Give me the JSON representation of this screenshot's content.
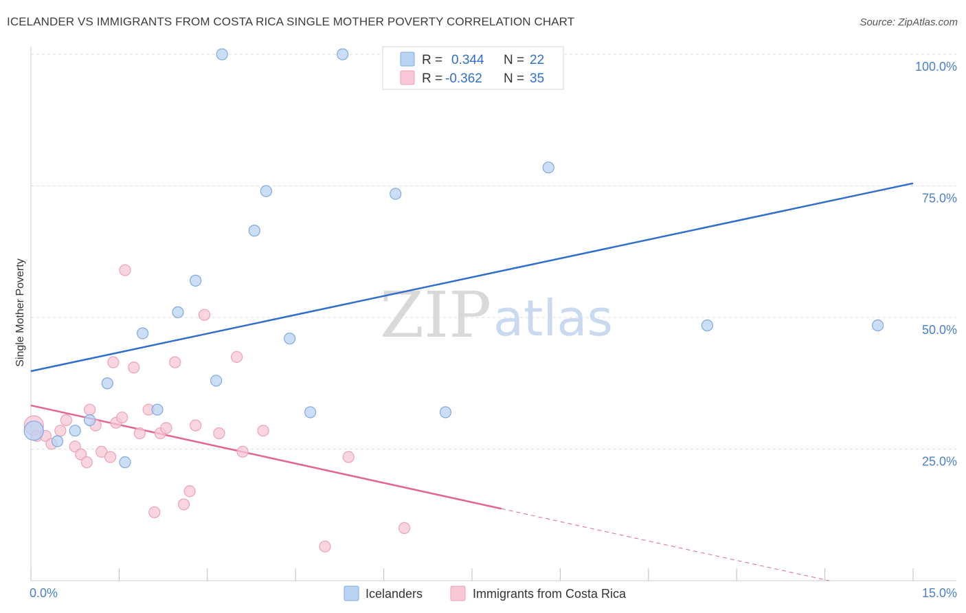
{
  "header": {
    "title": "ICELANDER VS IMMIGRANTS FROM COSTA RICA SINGLE MOTHER POVERTY CORRELATION CHART",
    "source": "Source: ZipAtlas.com"
  },
  "watermark": {
    "zip": "ZIP",
    "atlas": "atlas"
  },
  "legend": {
    "rows": [
      {
        "r_label": "R =",
        "r_value": "0.344",
        "n_label": "N =",
        "n_value": "22"
      },
      {
        "r_label": "R =",
        "r_value": "-0.362",
        "n_label": "N =",
        "n_value": "35"
      }
    ],
    "bottom": [
      "Icelanders",
      "Immigrants from Costa Rica"
    ]
  },
  "colors": {
    "blue_fill": "#b9d3f3",
    "blue_stroke": "#7ea9dd",
    "blue_line": "#2f6ec9",
    "pink_fill": "#f7c7d5",
    "pink_stroke": "#eba1b8",
    "pink_line": "#e0668f",
    "grid": "#dddddd",
    "axis_label": "#4a7fc9"
  },
  "chart_data": {
    "type": "scatter",
    "title": "ICELANDER VS IMMIGRANTS FROM COSTA RICA SINGLE MOTHER POVERTY CORRELATION CHART",
    "xlabel": "",
    "ylabel": "Single Mother Poverty",
    "xlim": [
      0,
      15
    ],
    "ylim": [
      0,
      100
    ],
    "x_tick_labels": [
      "0.0%",
      "15.0%"
    ],
    "y_ticks": [
      25,
      50,
      75,
      100
    ],
    "y_tick_labels": [
      "25.0%",
      "50.0%",
      "75.0%",
      "100.0%"
    ],
    "grid": true,
    "series": [
      {
        "name": "Icelanders",
        "r": 0.344,
        "n": 22,
        "points": [
          [
            0.05,
            28.5
          ],
          [
            0.45,
            26.5
          ],
          [
            0.75,
            28.5
          ],
          [
            1.0,
            30.5
          ],
          [
            1.3,
            37.5
          ],
          [
            1.6,
            22.5
          ],
          [
            1.9,
            47.0
          ],
          [
            2.15,
            32.5
          ],
          [
            2.5,
            51.0
          ],
          [
            2.8,
            57.0
          ],
          [
            3.15,
            38.0
          ],
          [
            3.25,
            100
          ],
          [
            3.8,
            66.5
          ],
          [
            4.0,
            74.0
          ],
          [
            4.4,
            46.0
          ],
          [
            4.75,
            32.0
          ],
          [
            5.3,
            100
          ],
          [
            6.2,
            73.5
          ],
          [
            7.05,
            32.0
          ],
          [
            8.8,
            78.5
          ],
          [
            11.5,
            48.5
          ],
          [
            14.4,
            48.5
          ]
        ],
        "trend": {
          "x_start": 0,
          "y_start": 39.8,
          "x_end": 15,
          "y_end": 75.5,
          "dashed_after": null
        }
      },
      {
        "name": "Immigrants from Costa Rica",
        "r": -0.362,
        "n": 35,
        "points": [
          [
            0.05,
            29.5
          ],
          [
            0.1,
            27.5
          ],
          [
            0.25,
            27.5
          ],
          [
            0.35,
            26.0
          ],
          [
            0.5,
            28.5
          ],
          [
            0.6,
            30.5
          ],
          [
            0.75,
            25.5
          ],
          [
            0.85,
            24.0
          ],
          [
            0.95,
            22.5
          ],
          [
            1.0,
            32.5
          ],
          [
            1.1,
            29.5
          ],
          [
            1.2,
            24.5
          ],
          [
            1.35,
            23.5
          ],
          [
            1.4,
            41.5
          ],
          [
            1.45,
            30.0
          ],
          [
            1.55,
            31.0
          ],
          [
            1.6,
            59.0
          ],
          [
            1.75,
            40.5
          ],
          [
            1.85,
            28.0
          ],
          [
            2.0,
            32.5
          ],
          [
            2.1,
            13.0
          ],
          [
            2.2,
            28.0
          ],
          [
            2.3,
            29.0
          ],
          [
            2.45,
            41.5
          ],
          [
            2.6,
            14.5
          ],
          [
            2.7,
            17.0
          ],
          [
            2.8,
            29.5
          ],
          [
            2.95,
            50.5
          ],
          [
            3.2,
            28.0
          ],
          [
            3.5,
            42.5
          ],
          [
            3.6,
            24.5
          ],
          [
            3.95,
            28.5
          ],
          [
            5.0,
            6.5
          ],
          [
            5.4,
            23.5
          ],
          [
            6.35,
            10.0
          ]
        ],
        "trend": {
          "x_start": 0,
          "y_start": 33.3,
          "x_end": 15,
          "y_end": -3.5,
          "dashed_after": 8.0
        }
      }
    ]
  }
}
